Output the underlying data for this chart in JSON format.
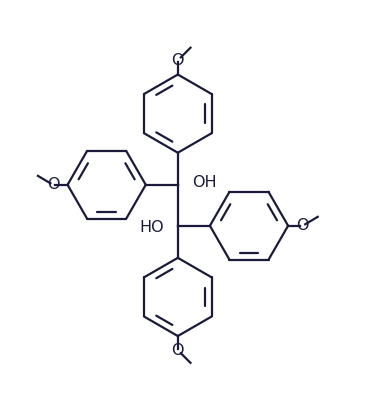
{
  "line_color": "#1a1a3a",
  "bg_color": "#ffffff",
  "line_width": 1.6,
  "font_size": 11.5,
  "fig_width": 3.78,
  "fig_height": 4.18,
  "oh1_label": "OH",
  "oh2_label": "HO",
  "ring_r": 0.105,
  "c1": [
    0.47,
    0.565
  ],
  "c2": [
    0.47,
    0.455
  ]
}
